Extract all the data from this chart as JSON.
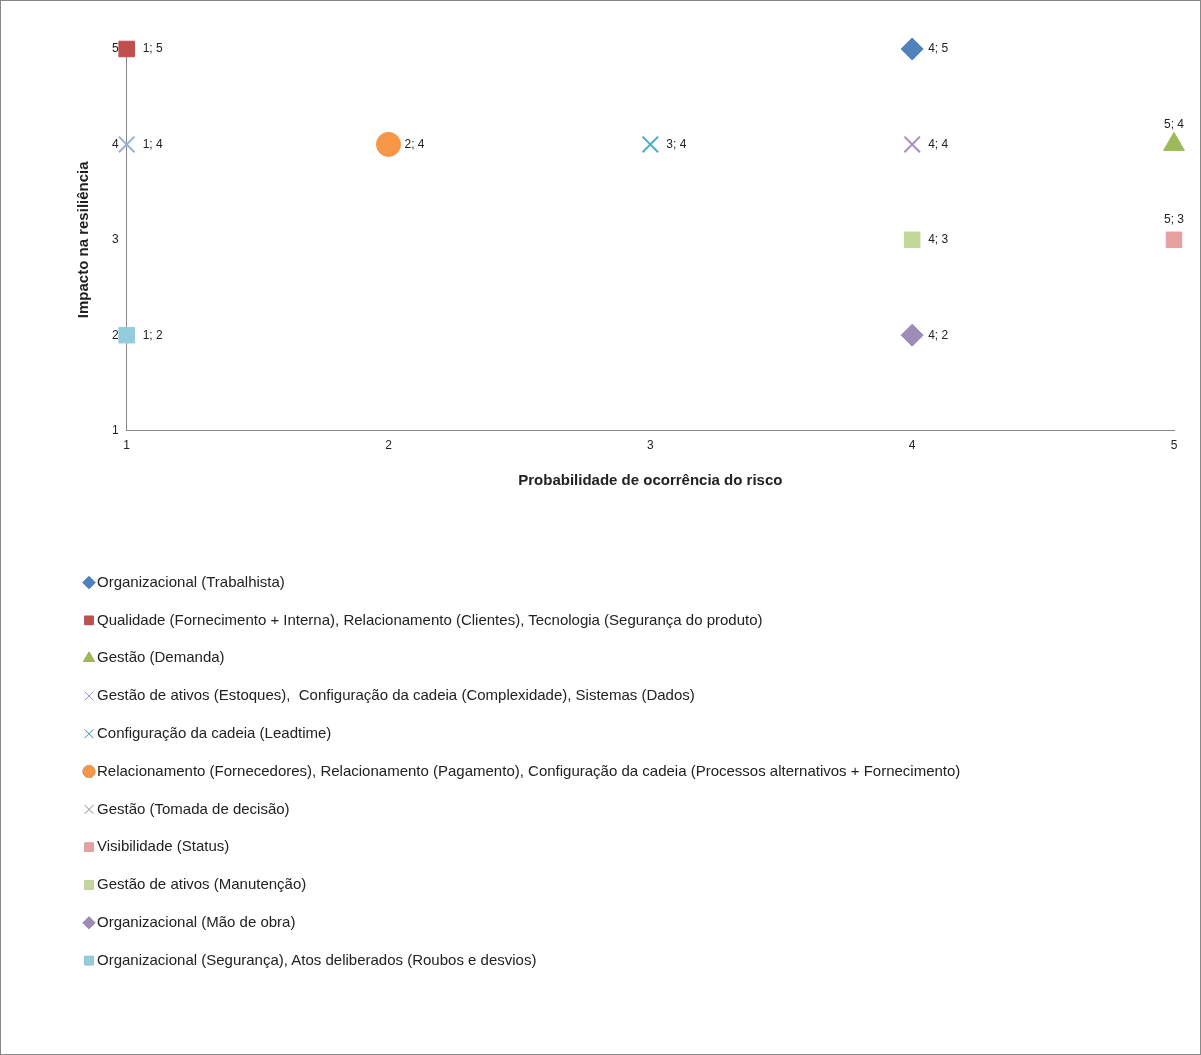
{
  "chart_data": {
    "type": "scatter",
    "xlabel": "Probabilidade de ocorrência do risco",
    "ylabel": "Impacto na resiliência",
    "xlim": [
      1,
      5
    ],
    "xticks": [
      1,
      2,
      3,
      4,
      5
    ],
    "ylim": [
      1,
      5
    ],
    "yticks": [
      1,
      2,
      3,
      4,
      5
    ],
    "grid": false,
    "legend": "bottom",
    "series": [
      {
        "name": "Organizacional (Trabalhista)",
        "color": "#4f81bd",
        "marker": "diamond",
        "x": [
          4
        ],
        "values": [
          5
        ],
        "value_labels": [
          "4; 5"
        ]
      },
      {
        "name": "Qualidade (Fornecimento + Interna), Relacionamento (Clientes), Tecnologia (Segurança do produto)",
        "color": "#c0504d",
        "marker": "square",
        "x": [
          1
        ],
        "values": [
          5
        ],
        "value_labels": [
          "1; 5"
        ]
      },
      {
        "name": "Gestão (Demanda)",
        "color": "#9bbb59",
        "marker": "triangle",
        "x": [
          5
        ],
        "values": [
          4
        ],
        "value_labels": [
          "5; 4"
        ]
      },
      {
        "name": "Gestão de ativos (Estoques),  Configuração da cadeia (Complexidade), Sistemas (Dados)",
        "color": "#a48fc4",
        "marker": "cross",
        "x": [
          4
        ],
        "values": [
          4
        ],
        "value_labels": [
          "4; 4"
        ]
      },
      {
        "name": "Configuração da cadeia (Leadtime)",
        "color": "#4bacc6",
        "marker": "cross",
        "x": [
          3
        ],
        "values": [
          4
        ],
        "value_labels": [
          "3; 4"
        ]
      },
      {
        "name": "Relacionamento (Fornecedores), Relacionamento (Pagamento), Configuração da cadeia (Processos alternativos + Fornecimento)",
        "color": "#f79646",
        "marker": "circle",
        "x": [
          2
        ],
        "values": [
          4
        ],
        "value_labels": [
          "2; 4"
        ]
      },
      {
        "name": "Gestão (Tomada de decisão)",
        "color": "#95b3d7",
        "marker": "cross",
        "x": [
          1
        ],
        "values": [
          4
        ],
        "value_labels": [
          "1; 4"
        ]
      },
      {
        "name": "Visibilidade (Status)",
        "color": "#e6a0a0",
        "marker": "square",
        "x": [
          5
        ],
        "values": [
          3
        ],
        "value_labels": [
          "5; 3"
        ]
      },
      {
        "name": "Gestão de ativos (Manutenção)",
        "color": "#c3d69b",
        "marker": "square",
        "x": [
          4
        ],
        "values": [
          3
        ],
        "value_labels": [
          "4; 3"
        ]
      },
      {
        "name": "Organizacional (Mão de obra)",
        "color": "#9d8bb8",
        "marker": "diamond",
        "x": [
          4
        ],
        "values": [
          2
        ],
        "value_labels": [
          "4; 2"
        ]
      },
      {
        "name": "Organizacional (Segurança), Atos deliberados (Roubos e desvios)",
        "color": "#93cddd",
        "marker": "square",
        "x": [
          1
        ],
        "values": [
          2
        ],
        "value_labels": [
          "1; 2"
        ]
      }
    ]
  }
}
